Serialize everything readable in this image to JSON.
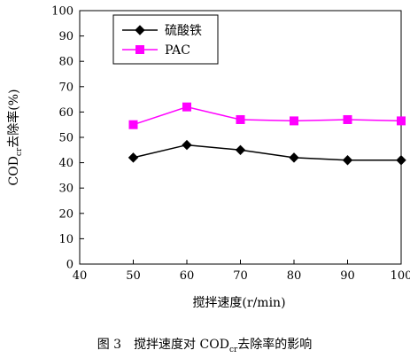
{
  "chart_data": {
    "type": "line",
    "x_label": "搅拌速度(r/min)",
    "y_label": "COD",
    "y_label_sub": "cr",
    "y_label_suffix": "去除率(%)",
    "xlim": [
      40,
      100
    ],
    "ylim": [
      0,
      100
    ],
    "x_ticks": [
      40,
      50,
      60,
      70,
      80,
      90,
      100
    ],
    "y_ticks": [
      0,
      10,
      20,
      30,
      40,
      50,
      60,
      70,
      80,
      90,
      100
    ],
    "grid": false,
    "legend_position": "top-left",
    "series": [
      {
        "name": "硫酸铁",
        "color": "#000000",
        "marker": "diamond",
        "x": [
          50,
          60,
          70,
          80,
          90,
          100
        ],
        "y": [
          42,
          47,
          45,
          42,
          41,
          41
        ]
      },
      {
        "name": "PAC",
        "color": "#ff00ff",
        "marker": "square",
        "x": [
          50,
          60,
          70,
          80,
          90,
          100
        ],
        "y": [
          55,
          62,
          57,
          56.5,
          57,
          56.5
        ]
      }
    ]
  },
  "caption": {
    "figure_number": "图 3",
    "text_before": "搅拌速度对 COD",
    "subscript": "cr",
    "text_after": "去除率的影响"
  }
}
